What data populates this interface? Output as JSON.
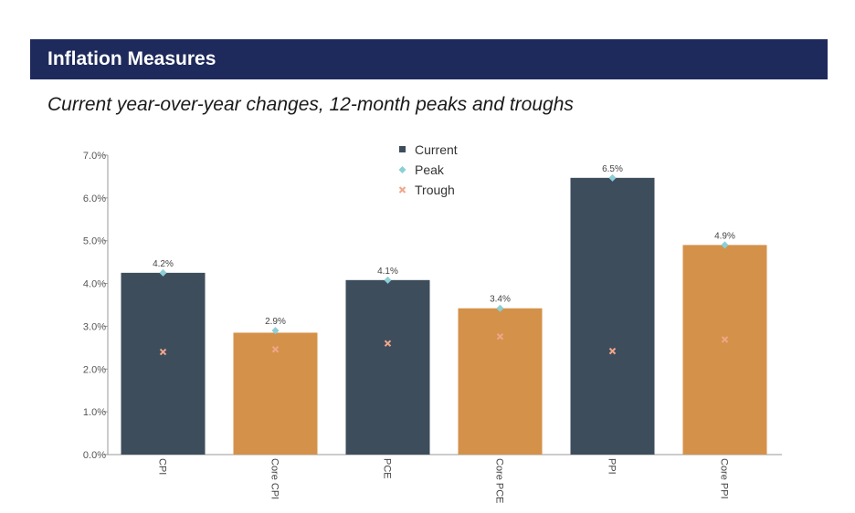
{
  "header": {
    "title": "Inflation Measures"
  },
  "subtitle": "Current year-over-year changes, 12-month peaks and troughs",
  "chart_data": {
    "type": "bar",
    "categories": [
      "CPI",
      "Core CPI",
      "PCE",
      "Core PCE",
      "PPI",
      "Core PPI"
    ],
    "series": [
      {
        "name": "Current",
        "values": [
          4.25,
          2.85,
          4.08,
          3.42,
          6.47,
          4.9
        ]
      },
      {
        "name": "Peak",
        "values": [
          4.25,
          2.9,
          4.08,
          3.42,
          6.47,
          4.9
        ]
      },
      {
        "name": "Trough",
        "values": [
          2.4,
          2.46,
          2.6,
          2.76,
          2.42,
          2.69
        ]
      }
    ],
    "data_labels": [
      "4.2%",
      "2.9%",
      "4.1%",
      "3.4%",
      "6.5%",
      "4.9%"
    ],
    "bar_colors": [
      "#3d4d5c",
      "#d4914a",
      "#3d4d5c",
      "#d4914a",
      "#3d4d5c",
      "#d4914a"
    ],
    "peak_color": "#8ccfd6",
    "trough_color": "#f0a58a",
    "legend_square_color": "#3d4d5c",
    "yticks": [
      "0.0%",
      "1.0%",
      "2.0%",
      "3.0%",
      "4.0%",
      "5.0%",
      "6.0%",
      "7.0%"
    ],
    "ylim": [
      0,
      7
    ],
    "legend_position": "top-center",
    "grid": false
  }
}
